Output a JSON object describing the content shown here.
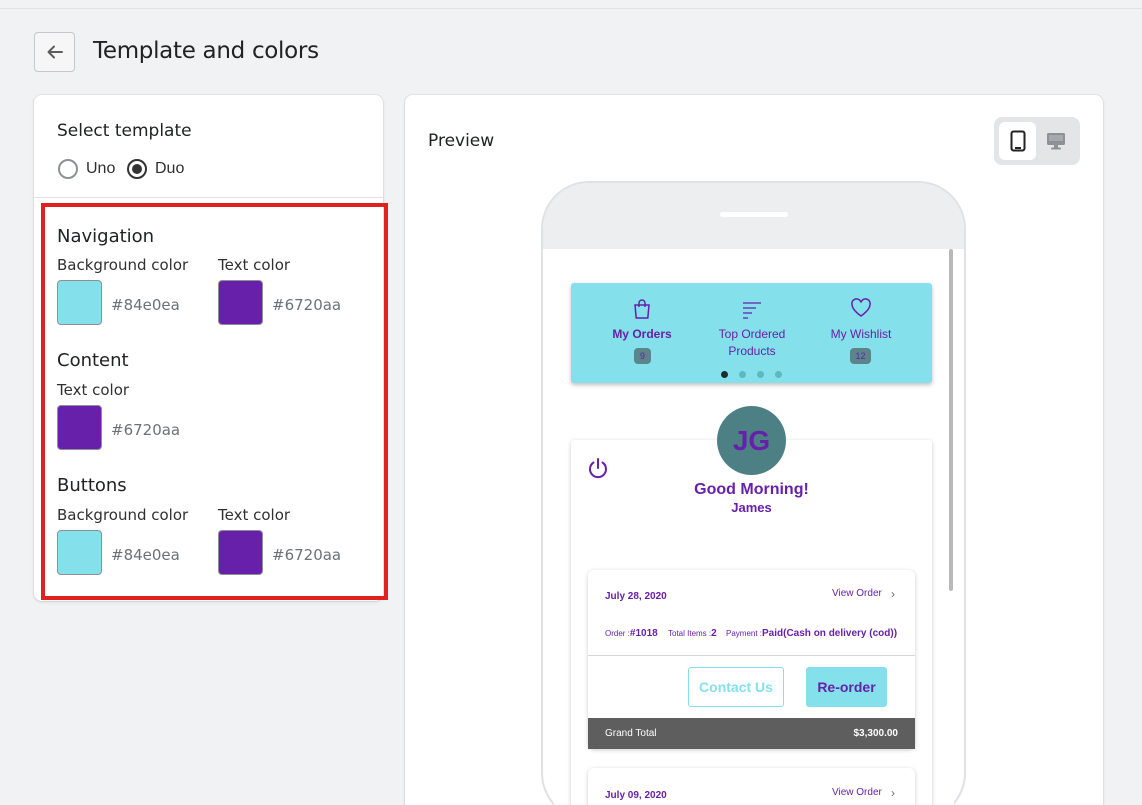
{
  "header": {
    "title": "Template and colors"
  },
  "template": {
    "title": "Select template",
    "options": [
      {
        "label": "Uno",
        "checked": false
      },
      {
        "label": "Duo",
        "checked": true
      }
    ]
  },
  "navigation": {
    "title": "Navigation",
    "background": {
      "label": "Background color",
      "value": "#84e0ea"
    },
    "text": {
      "label": "Text color",
      "value": "#6720aa"
    }
  },
  "content": {
    "title": "Content",
    "text": {
      "label": "Text color",
      "value": "#6720aa"
    }
  },
  "buttons": {
    "title": "Buttons",
    "background": {
      "label": "Background color",
      "value": "#84e0ea"
    },
    "text": {
      "label": "Text color",
      "value": "#6720aa"
    }
  },
  "preview": {
    "title": "Preview",
    "devices": [
      "mobile-icon",
      "desktop-icon"
    ],
    "nav_items": [
      {
        "label_line1": "My Orders",
        "label_line2": "",
        "badge": "9",
        "icon": "shopping-bag-icon"
      },
      {
        "label_line1": "Top Ordered",
        "label_line2": "Products",
        "badge": "",
        "icon": "sort-lines-icon"
      },
      {
        "label_line1": "My Wishlist",
        "label_line2": "",
        "badge": "12",
        "icon": "heart-icon"
      }
    ],
    "profile": {
      "initials": "JG",
      "greeting": "Good Morning!",
      "name": "James"
    },
    "orders": [
      {
        "date": "July 28, 2020",
        "view_label": "View Order",
        "order_label": "Order :",
        "order_no": "#1018",
        "items_label": "Total Items :",
        "items": "2",
        "payment_label": "Payment :",
        "payment": "Paid(Cash on delivery (cod))",
        "contact_label": "Contact Us",
        "reorder_label": "Re-order",
        "total_label": "Grand Total",
        "total": "$3,300.00"
      },
      {
        "date": "July 09, 2020",
        "view_label": "View Order"
      }
    ]
  }
}
